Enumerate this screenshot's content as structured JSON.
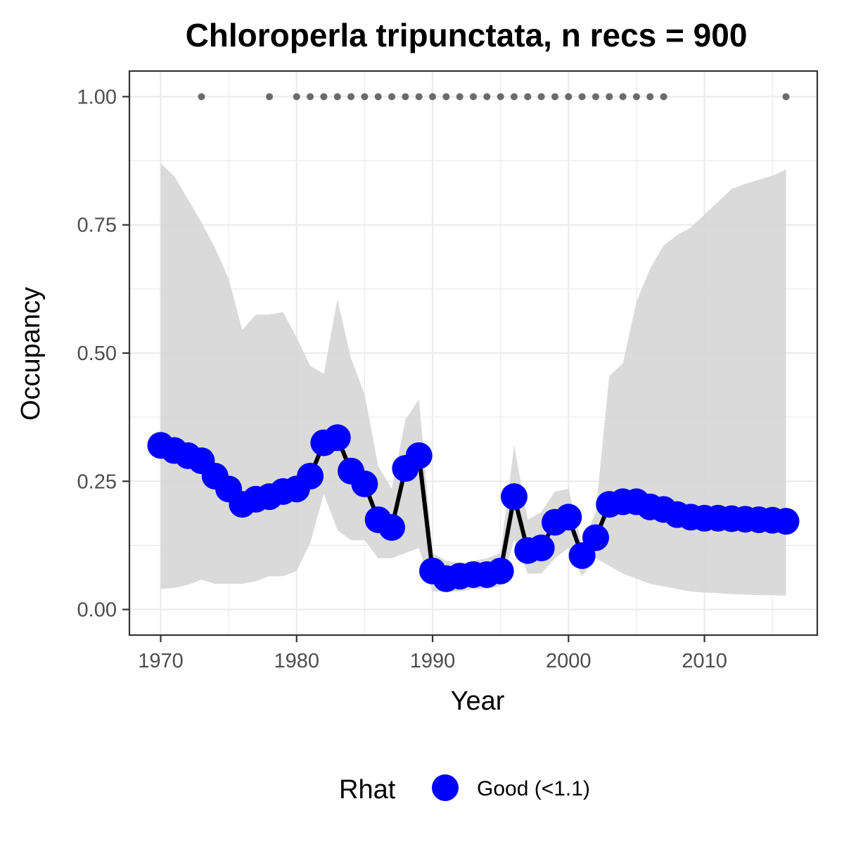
{
  "chart_data": {
    "type": "line",
    "title": "Chloroperla tripunctata, n recs = 900",
    "xlabel": "Year",
    "ylabel": "Occupancy",
    "xlim": [
      1967.7,
      2018.3
    ],
    "ylim": [
      -0.05,
      1.05
    ],
    "x_ticks": [
      1970,
      1980,
      1990,
      2000,
      2010
    ],
    "x_tick_labels": [
      "1970",
      "1980",
      "1990",
      "2000",
      "2010"
    ],
    "y_ticks": [
      0,
      0.25,
      0.5,
      0.75,
      1
    ],
    "y_tick_labels": [
      "0.00",
      "0.25",
      "0.50",
      "0.75",
      "1.00"
    ],
    "grid": true,
    "legend": {
      "position": "bottom",
      "title": "Rhat",
      "entries": [
        {
          "label": "Good (<1.1)",
          "color": "#0000ff"
        }
      ]
    },
    "colors": {
      "line": "#000000",
      "point": "#0000ff",
      "ribbon": "#d6d6d6",
      "record_point": "#6b6b6b",
      "grid_major": "#ebebeb",
      "border": "#333333"
    },
    "x": [
      1970,
      1971,
      1972,
      1973,
      1974,
      1975,
      1976,
      1977,
      1978,
      1979,
      1980,
      1981,
      1982,
      1983,
      1984,
      1985,
      1986,
      1987,
      1988,
      1989,
      1990,
      1991,
      1992,
      1993,
      1994,
      1995,
      1996,
      1997,
      1998,
      1999,
      2000,
      2001,
      2002,
      2003,
      2004,
      2005,
      2006,
      2007,
      2008,
      2009,
      2010,
      2011,
      2012,
      2013,
      2014,
      2015,
      2016
    ],
    "occupancy": [
      0.32,
      0.31,
      0.3,
      0.29,
      0.26,
      0.235,
      0.205,
      0.215,
      0.22,
      0.23,
      0.235,
      0.26,
      0.325,
      0.335,
      0.27,
      0.245,
      0.175,
      0.16,
      0.275,
      0.3,
      0.075,
      0.06,
      0.065,
      0.068,
      0.068,
      0.075,
      0.22,
      0.115,
      0.12,
      0.17,
      0.18,
      0.105,
      0.14,
      0.205,
      0.21,
      0.21,
      0.2,
      0.195,
      0.185,
      0.18,
      0.178,
      0.178,
      0.177,
      0.176,
      0.175,
      0.174,
      0.172
    ],
    "lower": [
      0.04,
      0.042,
      0.048,
      0.058,
      0.05,
      0.05,
      0.05,
      0.055,
      0.065,
      0.065,
      0.075,
      0.13,
      0.225,
      0.155,
      0.135,
      0.135,
      0.1,
      0.1,
      0.11,
      0.12,
      0.035,
      0.035,
      0.035,
      0.04,
      0.04,
      0.045,
      0.135,
      0.07,
      0.07,
      0.1,
      0.12,
      0.065,
      0.1,
      0.085,
      0.07,
      0.06,
      0.05,
      0.045,
      0.04,
      0.035,
      0.033,
      0.032,
      0.03,
      0.029,
      0.028,
      0.028,
      0.027
    ],
    "upper": [
      0.87,
      0.845,
      0.8,
      0.755,
      0.705,
      0.645,
      0.545,
      0.575,
      0.575,
      0.58,
      0.53,
      0.475,
      0.46,
      0.605,
      0.49,
      0.42,
      0.28,
      0.235,
      0.37,
      0.41,
      0.11,
      0.095,
      0.09,
      0.095,
      0.1,
      0.11,
      0.32,
      0.175,
      0.19,
      0.23,
      0.235,
      0.125,
      0.19,
      0.455,
      0.48,
      0.6,
      0.665,
      0.71,
      0.73,
      0.745,
      0.77,
      0.795,
      0.82,
      0.83,
      0.838,
      0.846,
      0.858
    ],
    "record_years": [
      1973,
      1978,
      1980,
      1981,
      1982,
      1983,
      1984,
      1985,
      1986,
      1987,
      1988,
      1989,
      1990,
      1991,
      1992,
      1993,
      1994,
      1995,
      1996,
      1997,
      1998,
      1999,
      2000,
      2001,
      2002,
      2003,
      2004,
      2005,
      2006,
      2007,
      2016
    ],
    "record_value": 1.0
  }
}
